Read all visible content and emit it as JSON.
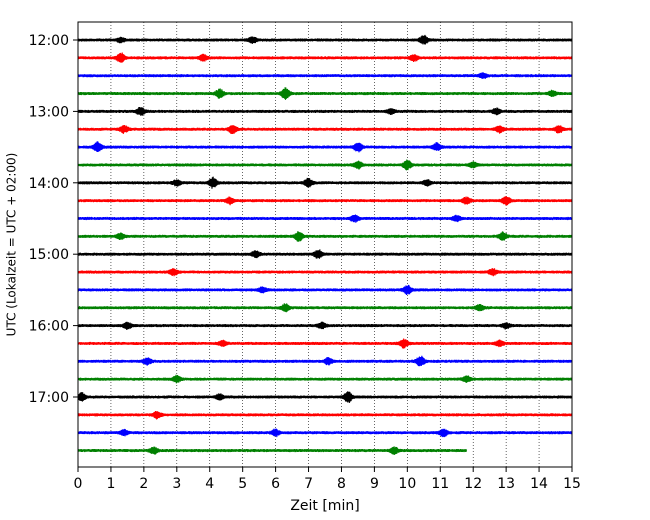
{
  "chart_data": {
    "type": "line",
    "title": "",
    "xlabel": "Zeit  [min]",
    "ylabel": "UTC (Lokalzeit = UTC + 02:00)",
    "xlim": [
      0,
      15
    ],
    "x_ticks": [
      "0",
      "1",
      "2",
      "3",
      "4",
      "5",
      "6",
      "7",
      "8",
      "9",
      "10",
      "11",
      "12",
      "13",
      "14",
      "15"
    ],
    "y_tick_labels": [
      "12:00",
      "13:00",
      "14:00",
      "15:00",
      "16:00",
      "17:00"
    ],
    "grid": "vertical dotted",
    "colors": [
      "#000000",
      "#ff0000",
      "#0000ff",
      "#008000"
    ],
    "rows": [
      {
        "start": "12:00",
        "color": "#000000",
        "events": [
          [
            1.3,
            0.25
          ],
          [
            5.3,
            0.35
          ],
          [
            10.5,
            0.45
          ]
        ]
      },
      {
        "start": "12:15",
        "color": "#ff0000",
        "events": [
          [
            1.3,
            0.5
          ],
          [
            3.8,
            0.35
          ],
          [
            10.2,
            0.35
          ]
        ]
      },
      {
        "start": "12:30",
        "color": "#0000ff",
        "events": [
          [
            12.3,
            0.25
          ]
        ]
      },
      {
        "start": "12:45",
        "color": "#008000",
        "events": [
          [
            4.3,
            0.45
          ],
          [
            6.3,
            0.6
          ],
          [
            14.4,
            0.3
          ]
        ]
      },
      {
        "start": "13:00",
        "color": "#000000",
        "events": [
          [
            1.9,
            0.4
          ],
          [
            9.5,
            0.3
          ],
          [
            12.7,
            0.3
          ]
        ]
      },
      {
        "start": "13:15",
        "color": "#ff0000",
        "events": [
          [
            1.4,
            0.4
          ],
          [
            4.7,
            0.45
          ],
          [
            12.8,
            0.35
          ],
          [
            14.6,
            0.35
          ]
        ]
      },
      {
        "start": "13:30",
        "color": "#0000ff",
        "events": [
          [
            0.6,
            0.5
          ],
          [
            8.5,
            0.5
          ],
          [
            10.9,
            0.4
          ]
        ]
      },
      {
        "start": "13:45",
        "color": "#008000",
        "events": [
          [
            8.5,
            0.4
          ],
          [
            10.0,
            0.5
          ],
          [
            12.0,
            0.3
          ]
        ]
      },
      {
        "start": "14:00",
        "color": "#000000",
        "events": [
          [
            3.0,
            0.3
          ],
          [
            4.1,
            0.55
          ],
          [
            7.0,
            0.45
          ],
          [
            10.6,
            0.3
          ]
        ]
      },
      {
        "start": "14:15",
        "color": "#ff0000",
        "events": [
          [
            4.6,
            0.35
          ],
          [
            11.8,
            0.35
          ],
          [
            13.0,
            0.45
          ]
        ]
      },
      {
        "start": "14:30",
        "color": "#0000ff",
        "events": [
          [
            8.4,
            0.35
          ],
          [
            11.5,
            0.3
          ]
        ]
      },
      {
        "start": "14:45",
        "color": "#008000",
        "events": [
          [
            1.3,
            0.3
          ],
          [
            6.7,
            0.5
          ],
          [
            12.9,
            0.4
          ]
        ]
      },
      {
        "start": "15:00",
        "color": "#000000",
        "events": [
          [
            5.4,
            0.35
          ],
          [
            7.3,
            0.45
          ]
        ]
      },
      {
        "start": "15:15",
        "color": "#ff0000",
        "events": [
          [
            2.9,
            0.35
          ],
          [
            12.6,
            0.35
          ]
        ]
      },
      {
        "start": "15:30",
        "color": "#0000ff",
        "events": [
          [
            5.6,
            0.3
          ],
          [
            10.0,
            0.45
          ]
        ]
      },
      {
        "start": "15:45",
        "color": "#008000",
        "events": [
          [
            6.3,
            0.4
          ],
          [
            12.2,
            0.3
          ]
        ]
      },
      {
        "start": "16:00",
        "color": "#000000",
        "events": [
          [
            1.5,
            0.35
          ],
          [
            7.4,
            0.3
          ],
          [
            13.0,
            0.3
          ]
        ]
      },
      {
        "start": "16:15",
        "color": "#ff0000",
        "events": [
          [
            4.4,
            0.3
          ],
          [
            9.9,
            0.45
          ],
          [
            12.8,
            0.3
          ]
        ]
      },
      {
        "start": "16:30",
        "color": "#0000ff",
        "events": [
          [
            2.1,
            0.35
          ],
          [
            7.6,
            0.35
          ],
          [
            10.4,
            0.55
          ]
        ]
      },
      {
        "start": "16:45",
        "color": "#008000",
        "events": [
          [
            3.0,
            0.35
          ],
          [
            11.8,
            0.3
          ]
        ]
      },
      {
        "start": "17:00",
        "color": "#000000",
        "events": [
          [
            0.1,
            0.45
          ],
          [
            4.3,
            0.3
          ],
          [
            8.2,
            0.55
          ]
        ]
      },
      {
        "start": "17:15",
        "color": "#ff0000",
        "events": [
          [
            2.4,
            0.35
          ]
        ]
      },
      {
        "start": "17:30",
        "color": "#0000ff",
        "events": [
          [
            1.4,
            0.3
          ],
          [
            6.0,
            0.35
          ],
          [
            11.1,
            0.4
          ]
        ]
      },
      {
        "start": "17:45",
        "color": "#008000",
        "end": 11.8,
        "events": [
          [
            2.3,
            0.35
          ],
          [
            9.6,
            0.35
          ]
        ]
      }
    ]
  }
}
